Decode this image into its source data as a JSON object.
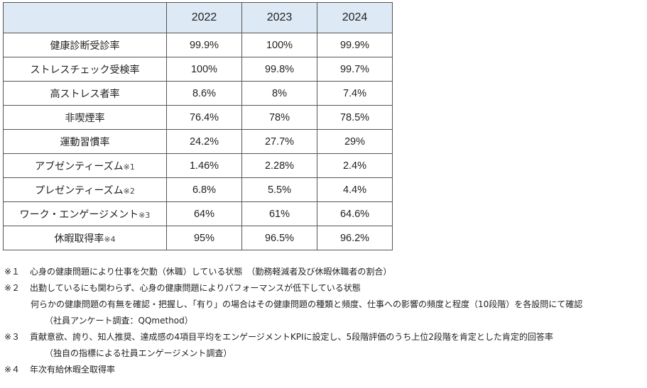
{
  "table": {
    "header": [
      "",
      "2022",
      "2023",
      "2024"
    ],
    "rows": [
      {
        "label": "健康診断受診率",
        "mark": "",
        "values": [
          "99.9%",
          "100%",
          "99.9%"
        ]
      },
      {
        "label": "ストレスチェック受検率",
        "mark": "",
        "values": [
          "100%",
          "99.8%",
          "99.7%"
        ]
      },
      {
        "label": "高ストレス者率",
        "mark": "",
        "values": [
          "8.6%",
          "8%",
          "7.4%"
        ]
      },
      {
        "label": "非喫煙率",
        "mark": "",
        "values": [
          "76.4%",
          "78%",
          "78.5%"
        ]
      },
      {
        "label": "運動習慣率",
        "mark": "",
        "values": [
          "24.2%",
          "27.7%",
          "29%"
        ]
      },
      {
        "label": "アブゼンティーズム",
        "mark": "※1",
        "values": [
          "1.46%",
          "2.28%",
          "2.4%"
        ]
      },
      {
        "label": "プレゼンティーズム",
        "mark": "※2",
        "values": [
          "6.8%",
          "5.5%",
          "4.4%"
        ]
      },
      {
        "label": "ワーク・エンゲージメント",
        "mark": "※3",
        "values": [
          "64%",
          "61%",
          "64.6%"
        ]
      },
      {
        "label": "休暇取得率",
        "mark": "※4",
        "values": [
          "95%",
          "96.5%",
          "96.2%"
        ]
      }
    ]
  },
  "notes": {
    "n1": {
      "mark": "※１",
      "text": "心身の健康問題により仕事を欠勤（休職）している状態　（勤務軽減者及び休暇休職者の割合）"
    },
    "n2": {
      "mark": "※２",
      "text": "出勤しているにも関わらず、心身の健康問題によりパフォーマンスが低下している状態"
    },
    "n2b": "何らかの健康問題の有無を確認・把握し、「有り」の場合はその健康問題の種類と頻度、仕事への影響の頻度と程度（10段階）を各設問にて確認",
    "n2c": "（社員アンケート調査：QQmethod）",
    "n3": {
      "mark": "※３",
      "text": "貢献意欲、誇り、知人推奨、達成感の4項目平均をエンゲージメントKPIに設定し、5段階評価のうち上位2段階を肯定とした肯定的回答率"
    },
    "n3b": "（独自の指標による社員エンゲージメント調査）",
    "n4": {
      "mark": "※４",
      "text": "年次有給休暇全取得率"
    }
  }
}
